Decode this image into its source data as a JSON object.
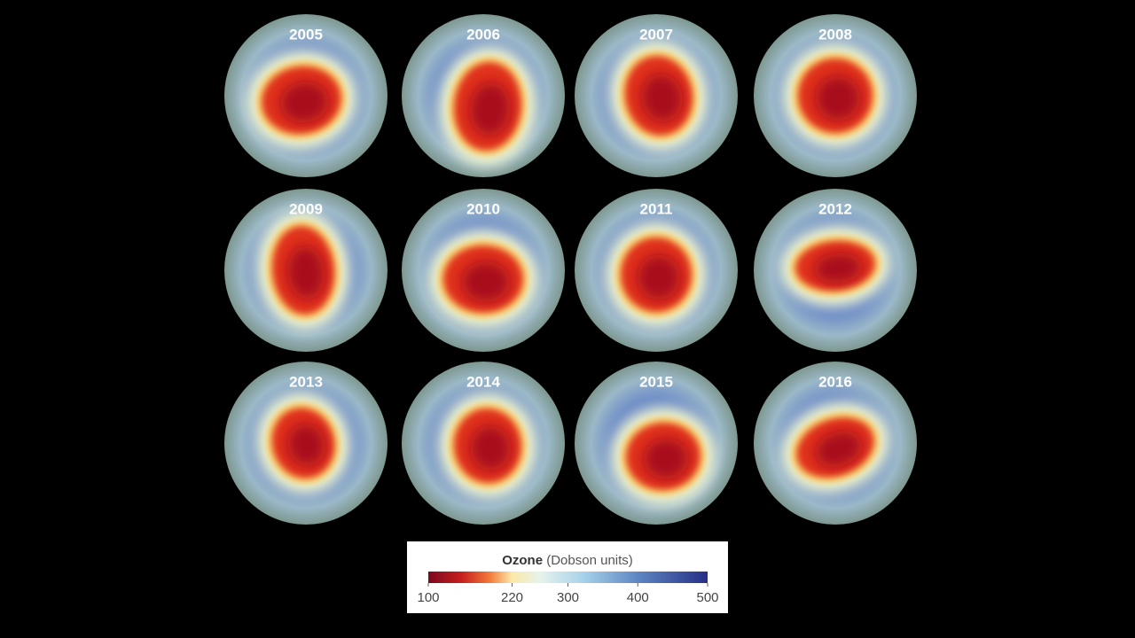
{
  "years": [
    "2005",
    "2006",
    "2007",
    "2008",
    "2009",
    "2010",
    "2011",
    "2012",
    "2013",
    "2014",
    "2015",
    "2016"
  ],
  "legend": {
    "title": "Ozone",
    "units": "(Dobson units)",
    "range": [
      100,
      500
    ],
    "ticks": [
      100,
      220,
      300,
      400,
      500
    ]
  }
}
